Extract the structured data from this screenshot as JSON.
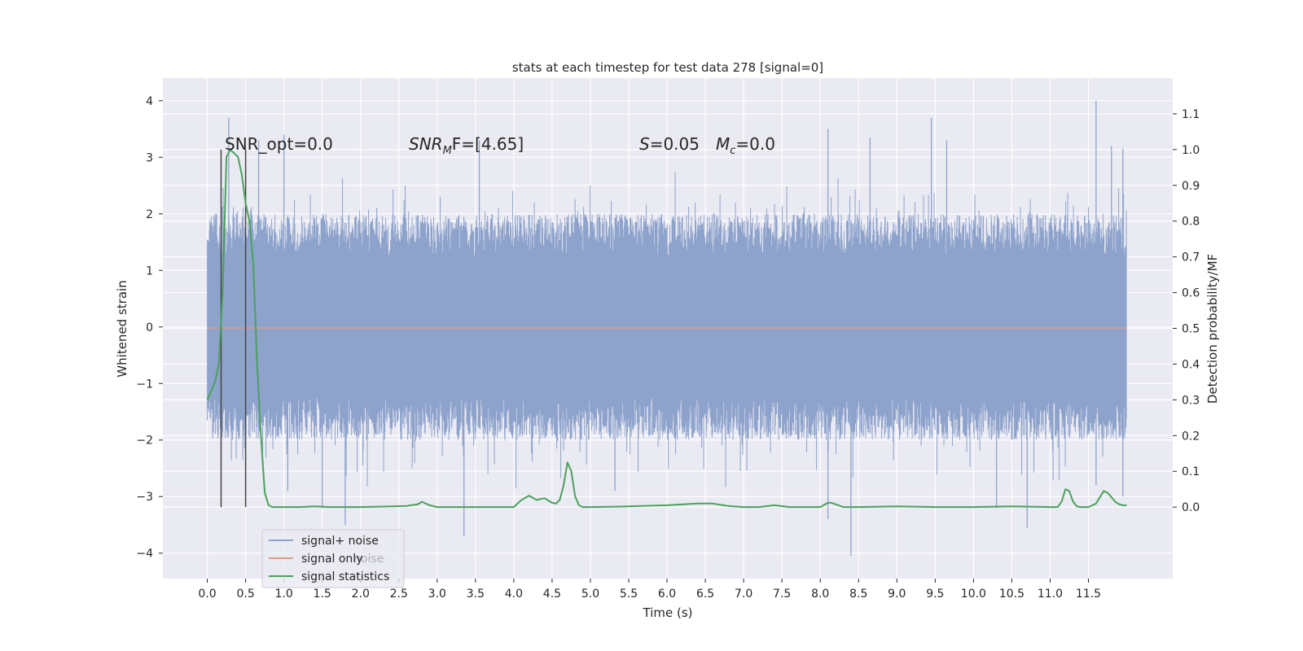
{
  "chart_data": {
    "type": "line",
    "title": "stats at each timestep for test data 278 [signal=0]",
    "xlabel": "Time (s)",
    "ylabel_left": "Whitened strain",
    "ylabel_right": "Detection probability/MF",
    "xlim": [
      -0.58,
      12.6
    ],
    "ylim_left": [
      -4.45,
      4.4
    ],
    "ylim_right": [
      -0.2,
      1.2
    ],
    "x_ticks": [
      0.0,
      0.5,
      1.0,
      1.5,
      2.0,
      2.5,
      3.0,
      3.5,
      4.0,
      4.5,
      5.0,
      5.5,
      6.0,
      6.5,
      7.0,
      7.5,
      8.0,
      8.5,
      9.0,
      9.5,
      10.0,
      10.5,
      11.0,
      11.5
    ],
    "x_tick_labels": [
      "0.0",
      "0.5",
      "1.0",
      "1.5",
      "2.0",
      "2.5",
      "3.0",
      "3.5",
      "4.0",
      "4.5",
      "5.0",
      "5.5",
      "6.0",
      "6.5",
      "7.0",
      "7.5",
      "8.0",
      "8.5",
      "9.0",
      "9.5",
      "10.0",
      "10.5",
      "11.0",
      "11.5"
    ],
    "y_left_ticks": [
      4,
      3,
      2,
      1,
      0,
      -1,
      -2,
      -3,
      -4
    ],
    "y_left_tick_labels": [
      "4",
      "3",
      "2",
      "1",
      "0",
      "−1",
      "−2",
      "−3",
      "−4"
    ],
    "y_right_ticks": [
      1.1,
      1.0,
      0.9,
      0.8,
      0.7,
      0.6,
      0.5,
      0.4,
      0.3,
      0.2,
      0.1,
      0.0
    ],
    "y_right_tick_labels": [
      "1.1",
      "1.0",
      "0.9",
      "0.8",
      "0.7",
      "0.6",
      "0.5",
      "0.4",
      "0.3",
      "0.2",
      "0.1",
      "0.0"
    ],
    "grid": true,
    "legend_position": "lower-left",
    "legend": [
      {
        "label": "signal+ noise",
        "color": "#8ea3cc"
      },
      {
        "label": "signal only",
        "color": "#dd9a82"
      },
      {
        "label": "signal statistics",
        "color": "#4aa15d"
      }
    ],
    "legend_ghost_text": "noise",
    "annotations": {
      "snr_opt": "SNR_opt=0.0",
      "snr_mf": {
        "base": "SNR",
        "sub": "M",
        "rest": "F=[4.65]"
      },
      "s_value": {
        "base": "S",
        "rest": "=0.05"
      },
      "mc_value": {
        "base": "M",
        "sub": "c",
        "rest": "=0.0"
      }
    },
    "vertical_markers_x": [
      0.18,
      0.5
    ],
    "noise_series": {
      "name": "signal+ noise",
      "x_range": [
        0.0,
        12.0
      ],
      "core_band": [
        -1.25,
        1.25
      ],
      "typical_peak": [
        -2.0,
        2.0
      ],
      "max": 4.0,
      "min": -4.05,
      "spikes": [
        [
          0.28,
          3.7
        ],
        [
          0.38,
          2.0
        ],
        [
          0.67,
          3.3
        ],
        [
          1.0,
          3.4
        ],
        [
          1.05,
          -2.9
        ],
        [
          1.5,
          -3.2
        ],
        [
          1.8,
          -3.5
        ],
        [
          3.35,
          -3.7
        ],
        [
          3.55,
          3.3
        ],
        [
          5.32,
          -2.9
        ],
        [
          8.1,
          3.5
        ],
        [
          8.1,
          -3.4
        ],
        [
          8.4,
          -4.05
        ],
        [
          8.65,
          3.35
        ],
        [
          9.45,
          3.7
        ],
        [
          9.65,
          3.3
        ],
        [
          10.3,
          -3.2
        ],
        [
          10.7,
          -3.55
        ],
        [
          11.6,
          4.0
        ],
        [
          11.6,
          -2.8
        ],
        [
          11.8,
          3.2
        ],
        [
          11.95,
          3.15
        ],
        [
          11.95,
          -3.0
        ]
      ]
    },
    "signal_only_series": {
      "name": "signal only",
      "x": [
        0.0,
        12.0
      ],
      "y": [
        -0.02,
        -0.02
      ]
    },
    "statistics_series": {
      "name": "signal statistics",
      "x": [
        0.0,
        0.1,
        0.15,
        0.2,
        0.25,
        0.3,
        0.35,
        0.4,
        0.45,
        0.5,
        0.55,
        0.6,
        0.65,
        0.7,
        0.75,
        0.8,
        0.85,
        0.9,
        1.0,
        1.2,
        1.4,
        1.6,
        2.0,
        2.4,
        2.6,
        2.75,
        2.8,
        2.9,
        3.0,
        3.5,
        4.0,
        4.1,
        4.2,
        4.3,
        4.4,
        4.5,
        4.55,
        4.6,
        4.65,
        4.7,
        4.75,
        4.8,
        4.85,
        4.9,
        5.0,
        5.5,
        6.0,
        6.4,
        6.6,
        6.8,
        7.0,
        7.2,
        7.4,
        7.6,
        8.0,
        8.1,
        8.15,
        8.3,
        8.5,
        9.0,
        9.5,
        10.0,
        10.5,
        11.0,
        11.1,
        11.15,
        11.2,
        11.25,
        11.3,
        11.35,
        11.4,
        11.5,
        11.6,
        11.7,
        11.75,
        11.8,
        11.85,
        11.9,
        11.95,
        12.0
      ],
      "y": [
        0.3,
        0.35,
        0.4,
        0.6,
        0.98,
        1.0,
        0.99,
        0.98,
        0.93,
        0.85,
        0.8,
        0.68,
        0.4,
        0.2,
        0.04,
        0.005,
        0.0,
        0.0,
        0.0,
        0.0,
        0.002,
        0.0,
        0.0,
        0.002,
        0.003,
        0.008,
        0.015,
        0.005,
        0.0,
        0.0,
        0.0,
        0.02,
        0.032,
        0.02,
        0.025,
        0.012,
        0.01,
        0.02,
        0.06,
        0.125,
        0.1,
        0.03,
        0.005,
        0.0,
        0.0,
        0.002,
        0.005,
        0.01,
        0.01,
        0.003,
        0.0,
        0.0,
        0.005,
        0.0,
        0.0,
        0.012,
        0.012,
        0.0,
        0.0,
        0.002,
        0.0,
        0.0,
        0.002,
        0.0,
        0.0,
        0.015,
        0.05,
        0.045,
        0.015,
        0.002,
        0.0,
        0.0,
        0.01,
        0.045,
        0.04,
        0.028,
        0.015,
        0.008,
        0.005,
        0.005
      ]
    }
  },
  "colors": {
    "axes_bg": "#eaeaf2",
    "grid": "#ffffff",
    "noise": "#8ea3cc",
    "signal_only": "#dd9a82",
    "statistics": "#4aa15d",
    "marker": "#444444",
    "text": "#262626"
  }
}
